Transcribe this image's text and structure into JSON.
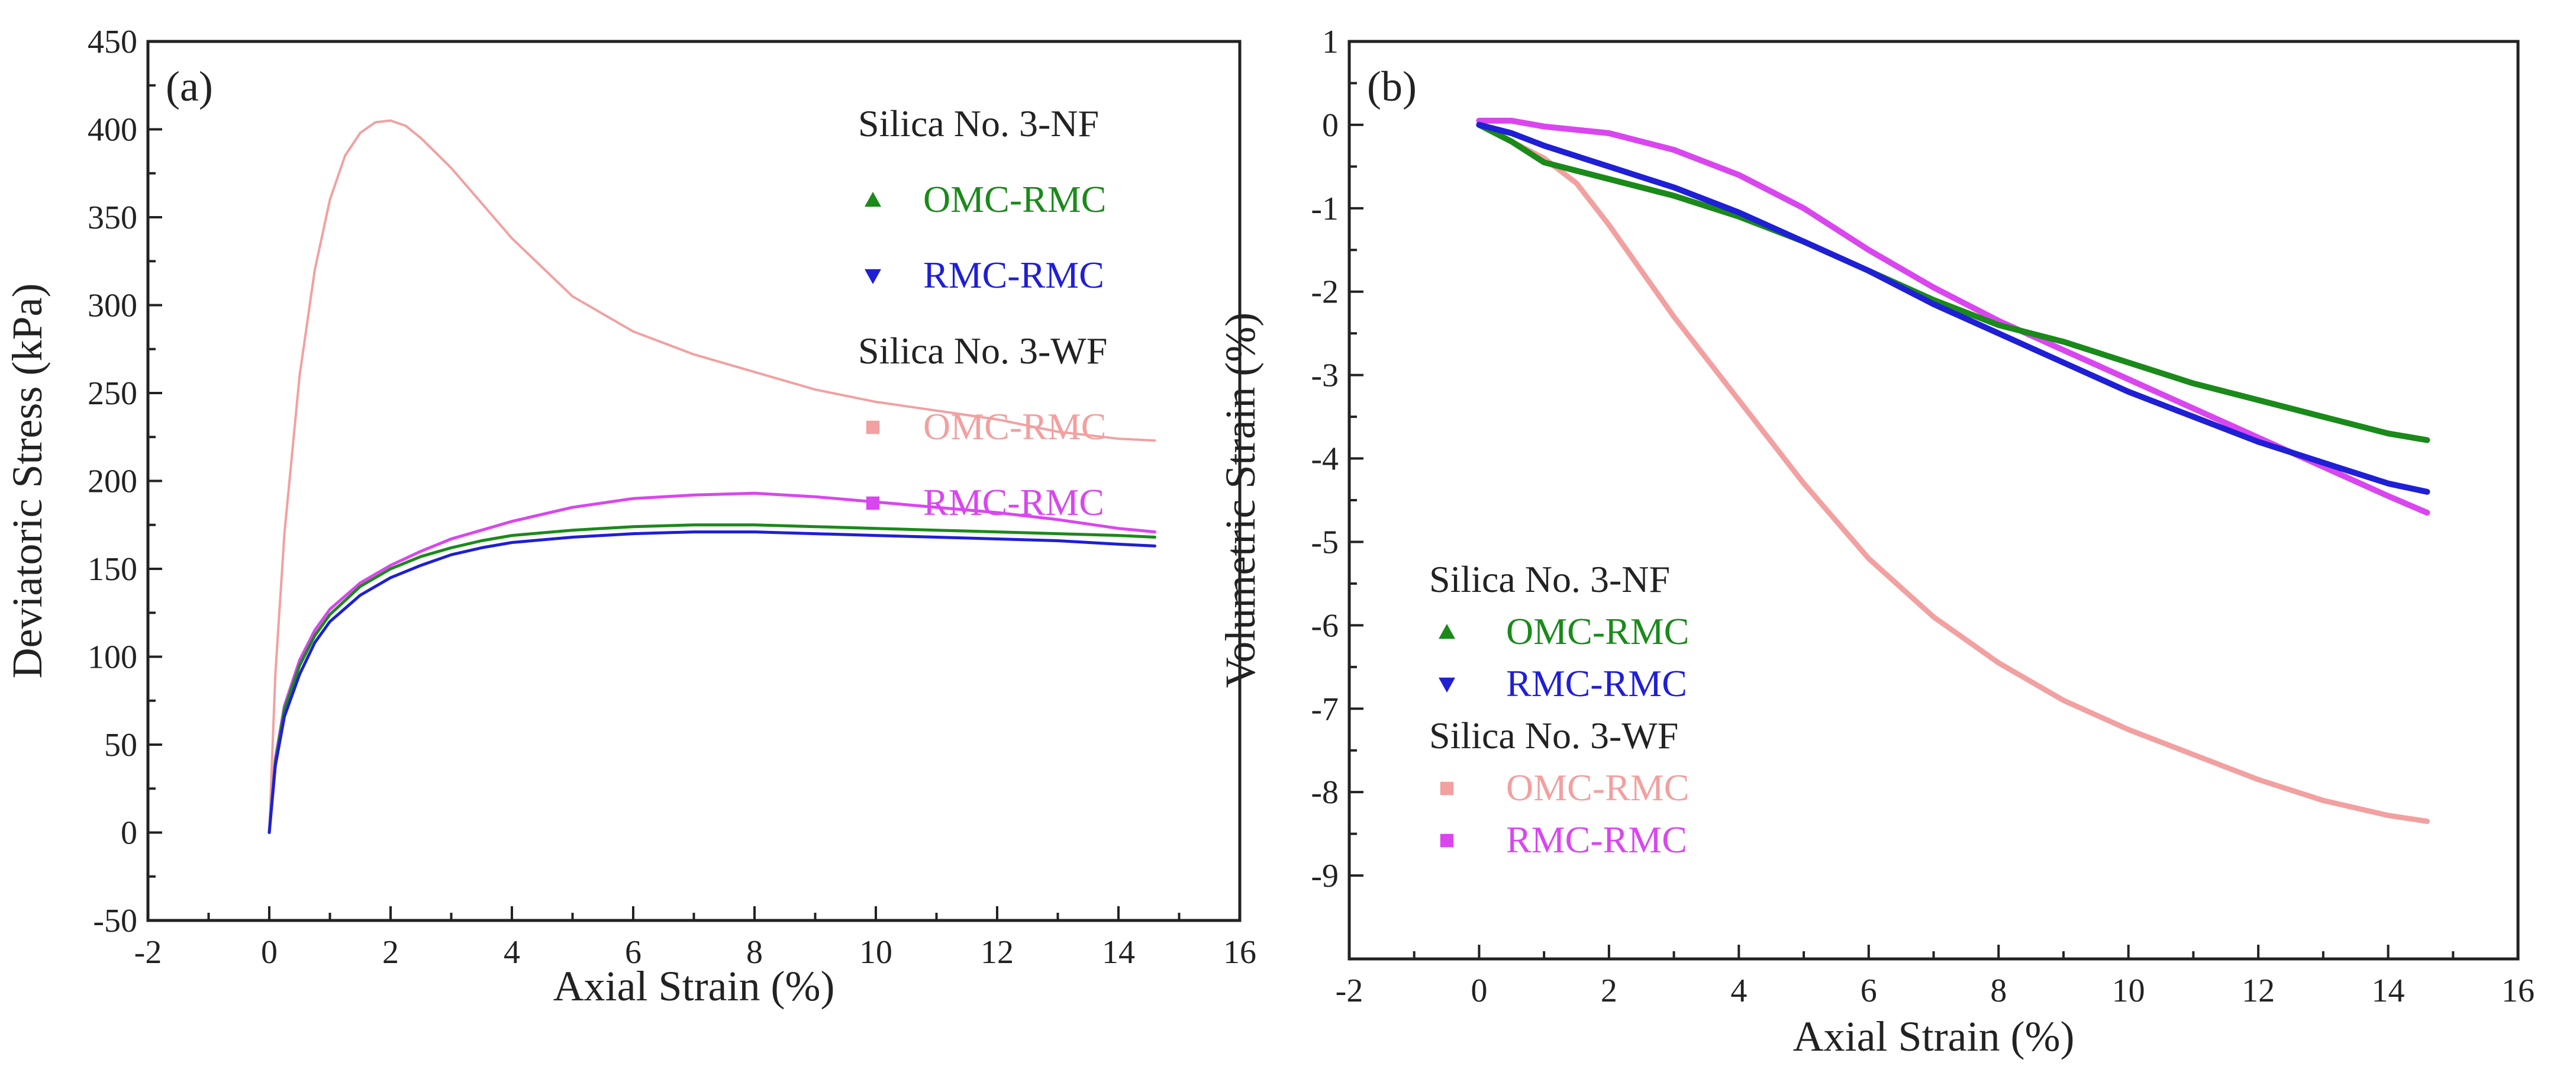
{
  "chart_data": [
    {
      "type": "line",
      "panel_label": "(a)",
      "xlabel": "Axial Strain (%)",
      "ylabel": "Deviatoric Stress (kPa)",
      "xlim": [
        -2,
        16
      ],
      "ylim": [
        -50,
        450
      ],
      "xticks": [
        -2,
        0,
        2,
        4,
        6,
        8,
        10,
        12,
        14,
        16
      ],
      "yticks": [
        -50,
        0,
        50,
        100,
        150,
        200,
        250,
        300,
        350,
        400,
        450
      ],
      "legend_position": "top-right",
      "legend": [
        {
          "kind": "group",
          "label": "Silica No. 3-NF"
        },
        {
          "kind": "entry",
          "label": "OMC-RMC",
          "series": 0
        },
        {
          "kind": "entry",
          "label": "RMC-RMC",
          "series": 1
        },
        {
          "kind": "group",
          "label": "Silica No. 3-WF"
        },
        {
          "kind": "entry",
          "label": "OMC-RMC",
          "series": 2
        },
        {
          "kind": "entry",
          "label": "RMC-RMC",
          "series": 3
        }
      ],
      "series": [
        {
          "name": "Silica No. 3-NF OMC-RMC",
          "color": "#1a8a1a",
          "marker": "triangle-up",
          "width": 5,
          "x": [
            0,
            0.1,
            0.25,
            0.5,
            0.75,
            1,
            1.5,
            2,
            2.5,
            3,
            3.5,
            4,
            5,
            6,
            7,
            8,
            9,
            10,
            11,
            12,
            13,
            14,
            14.6
          ],
          "y": [
            0,
            40,
            70,
            95,
            112,
            124,
            140,
            150,
            157,
            162,
            166,
            169,
            172,
            174,
            175,
            175,
            174,
            173,
            172,
            171,
            170,
            169,
            168
          ]
        },
        {
          "name": "Silica No. 3-NF RMC-RMC",
          "color": "#1f1fd6",
          "marker": "triangle-down",
          "width": 5,
          "x": [
            0,
            0.1,
            0.25,
            0.5,
            0.75,
            1,
            1.5,
            2,
            2.5,
            3,
            3.5,
            4,
            5,
            6,
            7,
            8,
            9,
            10,
            11,
            12,
            13,
            14,
            14.6
          ],
          "y": [
            0,
            38,
            66,
            90,
            108,
            120,
            135,
            145,
            152,
            158,
            162,
            165,
            168,
            170,
            171,
            171,
            170,
            169,
            168,
            167,
            166,
            164,
            163
          ]
        },
        {
          "name": "Silica No. 3-WF OMC-RMC",
          "color": "#f2a0a0",
          "marker": "square",
          "width": 4,
          "x": [
            0,
            0.1,
            0.25,
            0.5,
            0.75,
            1,
            1.25,
            1.5,
            1.75,
            2,
            2.25,
            2.5,
            3,
            3.5,
            4,
            5,
            6,
            7,
            8,
            9,
            10,
            11,
            12,
            13,
            14,
            14.6
          ],
          "y": [
            0,
            90,
            170,
            260,
            320,
            360,
            385,
            398,
            404,
            405,
            402,
            395,
            378,
            358,
            338,
            305,
            285,
            272,
            262,
            252,
            245,
            240,
            235,
            228,
            224,
            223
          ]
        },
        {
          "name": "Silica No. 3-WF RMC-RMC",
          "color": "#d946ef",
          "marker": "square",
          "width": 5,
          "x": [
            0,
            0.1,
            0.25,
            0.5,
            0.75,
            1,
            1.5,
            2,
            2.5,
            3,
            3.5,
            4,
            5,
            6,
            7,
            8,
            9,
            10,
            11,
            12,
            13,
            14,
            14.6
          ],
          "y": [
            0,
            42,
            72,
            98,
            115,
            127,
            142,
            152,
            160,
            167,
            172,
            177,
            185,
            190,
            192,
            193,
            191,
            188,
            185,
            182,
            178,
            173,
            171
          ]
        }
      ]
    },
    {
      "type": "line",
      "panel_label": "(b)",
      "xlabel": "Axial Strain (%)",
      "ylabel": "Volumetric Strain (%)",
      "xlim": [
        -2,
        16
      ],
      "ylim": [
        -10,
        1
      ],
      "xticks": [
        -2,
        0,
        2,
        4,
        6,
        8,
        10,
        12,
        14,
        16
      ],
      "yticks": [
        -9,
        -8,
        -7,
        -6,
        -5,
        -4,
        -3,
        -2,
        -1,
        0,
        1
      ],
      "legend_position": "bottom-left",
      "legend": [
        {
          "kind": "group",
          "label": "Silica No. 3-NF"
        },
        {
          "kind": "entry",
          "label": "OMC-RMC",
          "series": 0
        },
        {
          "kind": "entry",
          "label": "RMC-RMC",
          "series": 1
        },
        {
          "kind": "group",
          "label": "Silica No. 3-WF"
        },
        {
          "kind": "entry",
          "label": "OMC-RMC",
          "series": 2
        },
        {
          "kind": "entry",
          "label": "RMC-RMC",
          "series": 3
        }
      ],
      "series": [
        {
          "name": "Silica No. 3-NF OMC-RMC",
          "color": "#1a8a1a",
          "marker": "triangle-up",
          "width": 10,
          "x": [
            0,
            0.5,
            1,
            2,
            3,
            4,
            5,
            6,
            7,
            8,
            9,
            10,
            11,
            12,
            13,
            14,
            14.6
          ],
          "y": [
            0,
            -0.2,
            -0.45,
            -0.65,
            -0.85,
            -1.1,
            -1.4,
            -1.75,
            -2.1,
            -2.4,
            -2.6,
            -2.85,
            -3.1,
            -3.3,
            -3.5,
            -3.7,
            -3.78
          ]
        },
        {
          "name": "Silica No. 3-NF RMC-RMC",
          "color": "#1f1fd6",
          "marker": "triangle-down",
          "width": 10,
          "x": [
            0,
            0.5,
            1,
            2,
            3,
            4,
            5,
            6,
            7,
            8,
            9,
            10,
            11,
            12,
            13,
            14,
            14.6
          ],
          "y": [
            0,
            -0.1,
            -0.25,
            -0.5,
            -0.75,
            -1.05,
            -1.4,
            -1.75,
            -2.15,
            -2.5,
            -2.85,
            -3.2,
            -3.5,
            -3.8,
            -4.05,
            -4.3,
            -4.4
          ]
        },
        {
          "name": "Silica No. 3-WF OMC-RMC",
          "color": "#f2a0a0",
          "marker": "square",
          "width": 9,
          "x": [
            0,
            0.5,
            1,
            1.5,
            2,
            3,
            4,
            5,
            6,
            7,
            8,
            9,
            10,
            11,
            12,
            13,
            14,
            14.6
          ],
          "y": [
            0,
            -0.2,
            -0.4,
            -0.7,
            -1.2,
            -2.3,
            -3.3,
            -4.3,
            -5.2,
            -5.9,
            -6.45,
            -6.9,
            -7.25,
            -7.55,
            -7.85,
            -8.1,
            -8.28,
            -8.35
          ]
        },
        {
          "name": "Silica No. 3-WF RMC-RMC",
          "color": "#d946ef",
          "marker": "square",
          "width": 10,
          "x": [
            0,
            0.5,
            1,
            2,
            3,
            4,
            5,
            6,
            7,
            8,
            9,
            10,
            11,
            12,
            13,
            14,
            14.6
          ],
          "y": [
            0.05,
            0.05,
            -0.02,
            -0.1,
            -0.3,
            -0.6,
            -1.0,
            -1.5,
            -1.95,
            -2.35,
            -2.7,
            -3.05,
            -3.4,
            -3.75,
            -4.1,
            -4.45,
            -4.65
          ]
        }
      ]
    }
  ]
}
